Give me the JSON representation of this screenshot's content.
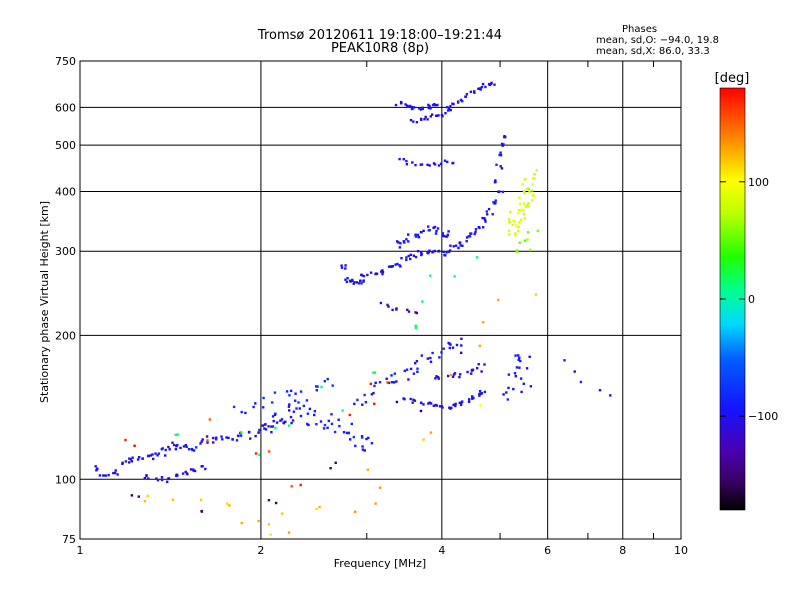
{
  "header": {
    "title": "Tromsø 20120611 19:18:00–19:21:44",
    "subtitle": "PEAK10R8 (8p)"
  },
  "phases": {
    "title": "Phases",
    "line_o": "mean, sd,O: −94.0, 19.8",
    "line_x": "mean, sd,X:  86.0, 33.3"
  },
  "colorbar": {
    "label": "[deg]",
    "range": [
      -180,
      180
    ],
    "ticks": [
      100,
      0,
      -100
    ],
    "tick_labels": [
      "100",
      "0",
      "−100"
    ]
  },
  "chart_data": {
    "type": "scatter",
    "xlabel": "Frequency [MHz]",
    "ylabel": "Stationary phase Virtual Height [km]",
    "x_scale": "log",
    "y_scale": "log",
    "xlim": [
      1,
      10
    ],
    "ylim": [
      75,
      750
    ],
    "grid": true,
    "x_major_ticks": [
      1,
      2,
      4,
      6,
      8,
      10
    ],
    "x_major_labels": [
      "1",
      "2",
      "4",
      "6",
      "8",
      "10"
    ],
    "x_minor_ticks": [
      3,
      5,
      7,
      9
    ],
    "y_ticks": [
      75,
      100,
      200,
      300,
      400,
      500,
      600,
      750
    ],
    "y_labels": [
      "75",
      "100",
      "200",
      "300",
      "400",
      "500",
      "600",
      "750"
    ],
    "y_grid": [
      100,
      200,
      300,
      400,
      500,
      600
    ],
    "color_scale": "phase [deg], rainbow from -180 (black/purple) through blue (-100), green (0), yellow (100) to red (180)",
    "traces": [
      {
        "x": [
          1.06,
          1.1,
          1.14,
          1.18,
          1.22,
          1.26,
          1.3,
          1.34,
          1.38,
          1.42,
          1.46,
          1.5,
          1.55,
          1.6,
          1.66,
          1.72,
          1.78,
          1.85,
          1.92,
          2.0,
          2.05,
          2.1,
          2.15,
          2.2
        ],
        "y": [
          105,
          102,
          103,
          108,
          110,
          111,
          112,
          113,
          114,
          116,
          118,
          117,
          116,
          120,
          121,
          122,
          121,
          123,
          124,
          126,
          130,
          128,
          132,
          131
        ],
        "phase": -100,
        "spread": 0.03,
        "n": 4
      },
      {
        "x": [
          1.3,
          1.35,
          1.4,
          1.45,
          1.5,
          1.55,
          1.6
        ],
        "y": [
          101,
          100,
          100,
          102,
          103,
          104,
          106
        ],
        "phase": -105,
        "spread": 0.02,
        "n": 4
      },
      {
        "x": [
          2.2,
          2.3,
          2.4,
          2.5,
          2.6,
          2.7,
          2.8,
          2.9,
          3.0
        ],
        "y": [
          135,
          140,
          138,
          133,
          130,
          128,
          126,
          122,
          118
        ],
        "phase": -90,
        "spread": 0.08,
        "n": 5
      },
      {
        "x": [
          1.9,
          2.0,
          2.1,
          2.2,
          2.3,
          2.4,
          2.5,
          2.6
        ],
        "y": [
          138,
          142,
          148,
          150,
          146,
          150,
          155,
          158
        ],
        "phase": -85,
        "spread": 0.07,
        "n": 3
      },
      {
        "x": [
          2.75,
          2.8,
          2.85,
          2.9,
          2.95,
          3.0,
          3.1,
          3.2,
          3.3,
          3.4,
          3.5,
          3.6,
          3.7,
          3.8,
          3.9,
          4.0,
          4.1,
          4.2,
          4.3,
          4.4,
          4.5,
          4.6,
          4.7,
          4.8,
          4.9,
          5.0
        ],
        "y": [
          280,
          262,
          258,
          256,
          260,
          266,
          268,
          272,
          276,
          282,
          288,
          292,
          295,
          298,
          300,
          296,
          300,
          305,
          310,
          318,
          326,
          336,
          348,
          362,
          380,
          400
        ],
        "phase": -100,
        "spread": 0.025,
        "n": 4
      },
      {
        "x": [
          4.9,
          4.95,
          5.0,
          5.02,
          5.05
        ],
        "y": [
          420,
          450,
          480,
          500,
          520
        ],
        "phase": -100,
        "spread": 0.02,
        "n": 3
      },
      {
        "x": [
          3.4,
          3.5,
          3.6,
          3.7,
          3.8,
          3.9,
          4.0,
          4.1
        ],
        "y": [
          310,
          318,
          322,
          326,
          332,
          335,
          330,
          325
        ],
        "phase": -95,
        "spread": 0.04,
        "n": 4
      },
      {
        "x": [
          3.4,
          3.5,
          3.6,
          3.7,
          3.8,
          3.9
        ],
        "y": [
          610,
          605,
          600,
          596,
          600,
          606
        ],
        "phase": -100,
        "spread": 0.02,
        "n": 4
      },
      {
        "x": [
          3.6,
          3.7,
          3.8,
          3.9,
          4.0,
          4.1
        ],
        "y": [
          560,
          565,
          570,
          575,
          580,
          585
        ],
        "phase": -105,
        "spread": 0.02,
        "n": 3
      },
      {
        "x": [
          4.1,
          4.2,
          4.3,
          4.4,
          4.5,
          4.6,
          4.7,
          4.8,
          4.9
        ],
        "y": [
          600,
          610,
          620,
          632,
          645,
          655,
          662,
          668,
          672
        ],
        "phase": -100,
        "spread": 0.02,
        "n": 3
      },
      {
        "x": [
          3.4,
          3.5,
          3.6,
          3.7,
          3.8,
          3.9,
          4.0,
          4.1,
          4.2
        ],
        "y": [
          470,
          462,
          458,
          456,
          455,
          456,
          458,
          460,
          462
        ],
        "phase": -100,
        "spread": 0.02,
        "n": 2
      },
      {
        "x": [
          2.9,
          3.0,
          3.1,
          3.2,
          3.3,
          3.4,
          3.5,
          3.6,
          3.7,
          3.8,
          3.9,
          4.0,
          4.1,
          4.2
        ],
        "y": [
          145,
          150,
          155,
          160,
          162,
          165,
          168,
          172,
          176,
          180,
          185,
          190,
          192,
          195
        ],
        "phase": -95,
        "spread": 0.05,
        "n": 3
      },
      {
        "x": [
          3.5,
          3.6,
          3.7,
          3.8,
          3.9,
          4.0,
          4.1,
          4.2,
          4.3,
          4.4,
          4.5,
          4.6,
          4.7
        ],
        "y": [
          148,
          146,
          145,
          144,
          143,
          142,
          142,
          143,
          144,
          146,
          148,
          150,
          152
        ],
        "phase": -100,
        "spread": 0.02,
        "n": 3
      },
      {
        "x": [
          3.9,
          4.0,
          4.1,
          4.2,
          4.3,
          4.4,
          4.5,
          4.6,
          4.7
        ],
        "y": [
          162,
          163,
          164,
          165,
          166,
          166,
          168,
          170,
          172
        ],
        "phase": -100,
        "spread": 0.03,
        "n": 2
      },
      {
        "x": [
          5.2,
          5.25,
          5.3,
          5.35,
          5.4,
          5.45,
          5.5
        ],
        "y": [
          150,
          155,
          165,
          175,
          180,
          170,
          160
        ],
        "phase": -95,
        "spread": 0.05,
        "n": 3
      },
      {
        "x": [
          5.2,
          5.3,
          5.35,
          5.4,
          5.45,
          5.5,
          5.55,
          5.6,
          5.65
        ],
        "y": [
          330,
          340,
          350,
          360,
          370,
          380,
          395,
          410,
          430
        ],
        "phase": 85,
        "spread": 0.05,
        "n": 5
      },
      {
        "x": [
          5.3,
          5.4,
          5.5,
          5.6
        ],
        "y": [
          300,
          310,
          320,
          330
        ],
        "phase": 60,
        "spread": 0.05,
        "n": 2
      },
      {
        "x": [
          3.2,
          3.3,
          3.4,
          3.5,
          3.6
        ],
        "y": [
          232,
          230,
          228,
          226,
          225
        ],
        "phase": -120,
        "spread": 0.03,
        "n": 2
      },
      {
        "x": [
          6.5,
          6.7,
          6.9,
          7.4,
          7.8
        ],
        "y": [
          175,
          168,
          160,
          155,
          152
        ],
        "phase": -95,
        "spread": 0.04,
        "n": 1
      },
      {
        "x": [
          1.3,
          1.5,
          1.7,
          1.9,
          2.1,
          2.3,
          2.6,
          2.9,
          3.3,
          3.7,
          4.2,
          4.8,
          5.5
        ],
        "y": [
          90,
          85,
          88,
          84,
          82,
          80,
          86,
          90,
          95,
          120,
          150,
          200,
          240
        ],
        "phase": 120,
        "spread": 0.15,
        "n": 2
      },
      {
        "x": [
          1.4,
          1.8,
          2.2,
          2.6,
          3.0,
          3.5,
          4.0,
          4.5
        ],
        "y": [
          125,
          118,
          130,
          150,
          170,
          210,
          250,
          280
        ],
        "phase": 10,
        "spread": 0.15,
        "n": 2
      },
      {
        "x": [
          1.2,
          1.6,
          2.0,
          2.4,
          2.8,
          3.2
        ],
        "y": [
          120,
          130,
          115,
          95,
          140,
          160
        ],
        "phase": 170,
        "spread": 0.12,
        "n": 2
      },
      {
        "x": [
          1.2,
          1.6,
          2.1,
          2.7,
          3.4,
          4.3
        ],
        "y": [
          95,
          88,
          92,
          105,
          135,
          175
        ],
        "phase": -150,
        "spread": 0.12,
        "n": 2
      }
    ]
  }
}
